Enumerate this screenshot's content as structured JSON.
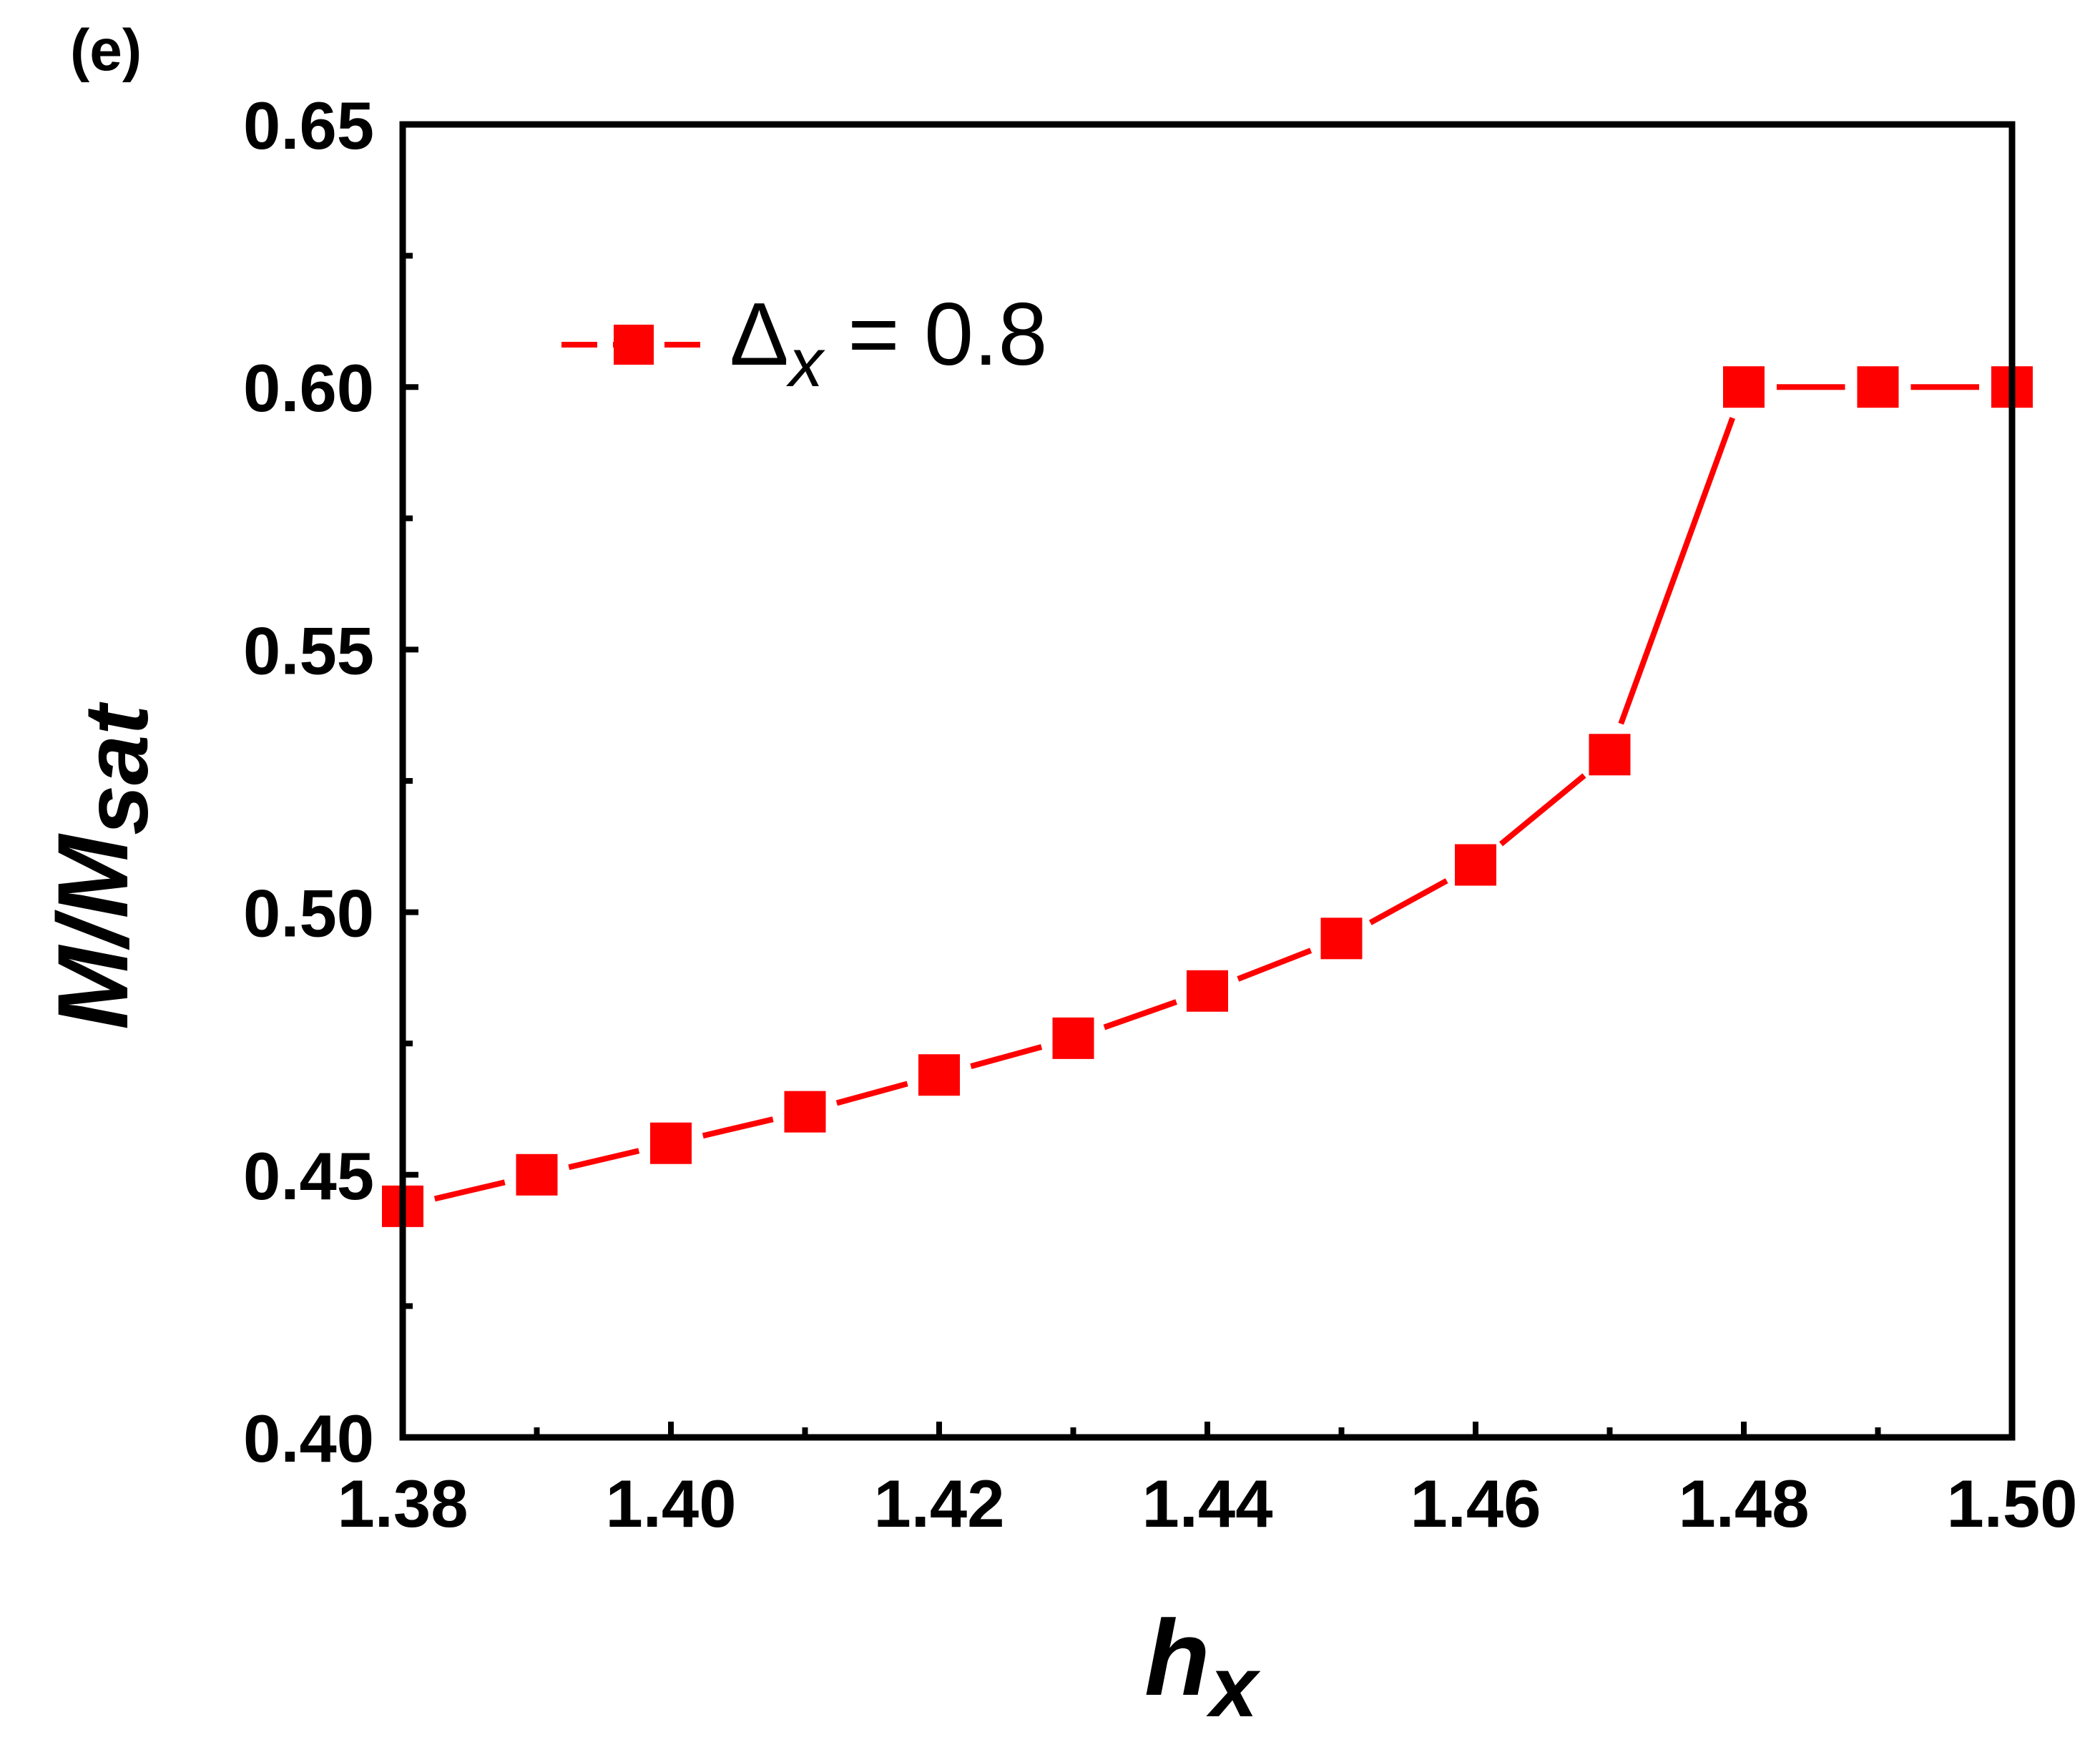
{
  "chart_data": {
    "type": "line",
    "panel_label": "(e)",
    "xlabel": {
      "main": "h",
      "sub": "x"
    },
    "ylabel": {
      "main": "M/M",
      "sub": "sat"
    },
    "xlim": [
      1.38,
      1.5
    ],
    "ylim": [
      0.4,
      0.65
    ],
    "x_ticks": [
      "1.38",
      "1.40",
      "1.42",
      "1.44",
      "1.46",
      "1.48",
      "1.50"
    ],
    "y_ticks": [
      "0.40",
      "0.45",
      "0.50",
      "0.55",
      "0.60",
      "0.65"
    ],
    "x_tick_values": [
      1.38,
      1.4,
      1.42,
      1.44,
      1.46,
      1.48,
      1.5
    ],
    "y_tick_values": [
      0.4,
      0.45,
      0.5,
      0.55,
      0.6,
      0.65
    ],
    "x_minor_tick_values": [
      1.39,
      1.41,
      1.43,
      1.45,
      1.47,
      1.49
    ],
    "y_minor_tick_values": [
      0.425,
      0.475,
      0.525,
      0.575,
      0.625
    ],
    "grid": false,
    "legend_position": "top-left",
    "series": [
      {
        "name": {
          "main": "Δ",
          "sub": "x",
          "rest": " = 0.8"
        },
        "color": "#ff0000",
        "marker": "square",
        "x": [
          1.38,
          1.39,
          1.4,
          1.41,
          1.42,
          1.43,
          1.44,
          1.45,
          1.46,
          1.47,
          1.48,
          1.49,
          1.5
        ],
        "y": [
          0.444,
          0.45,
          0.456,
          0.462,
          0.469,
          0.476,
          0.485,
          0.495,
          0.509,
          0.53,
          0.6,
          0.6,
          0.6
        ]
      }
    ]
  }
}
